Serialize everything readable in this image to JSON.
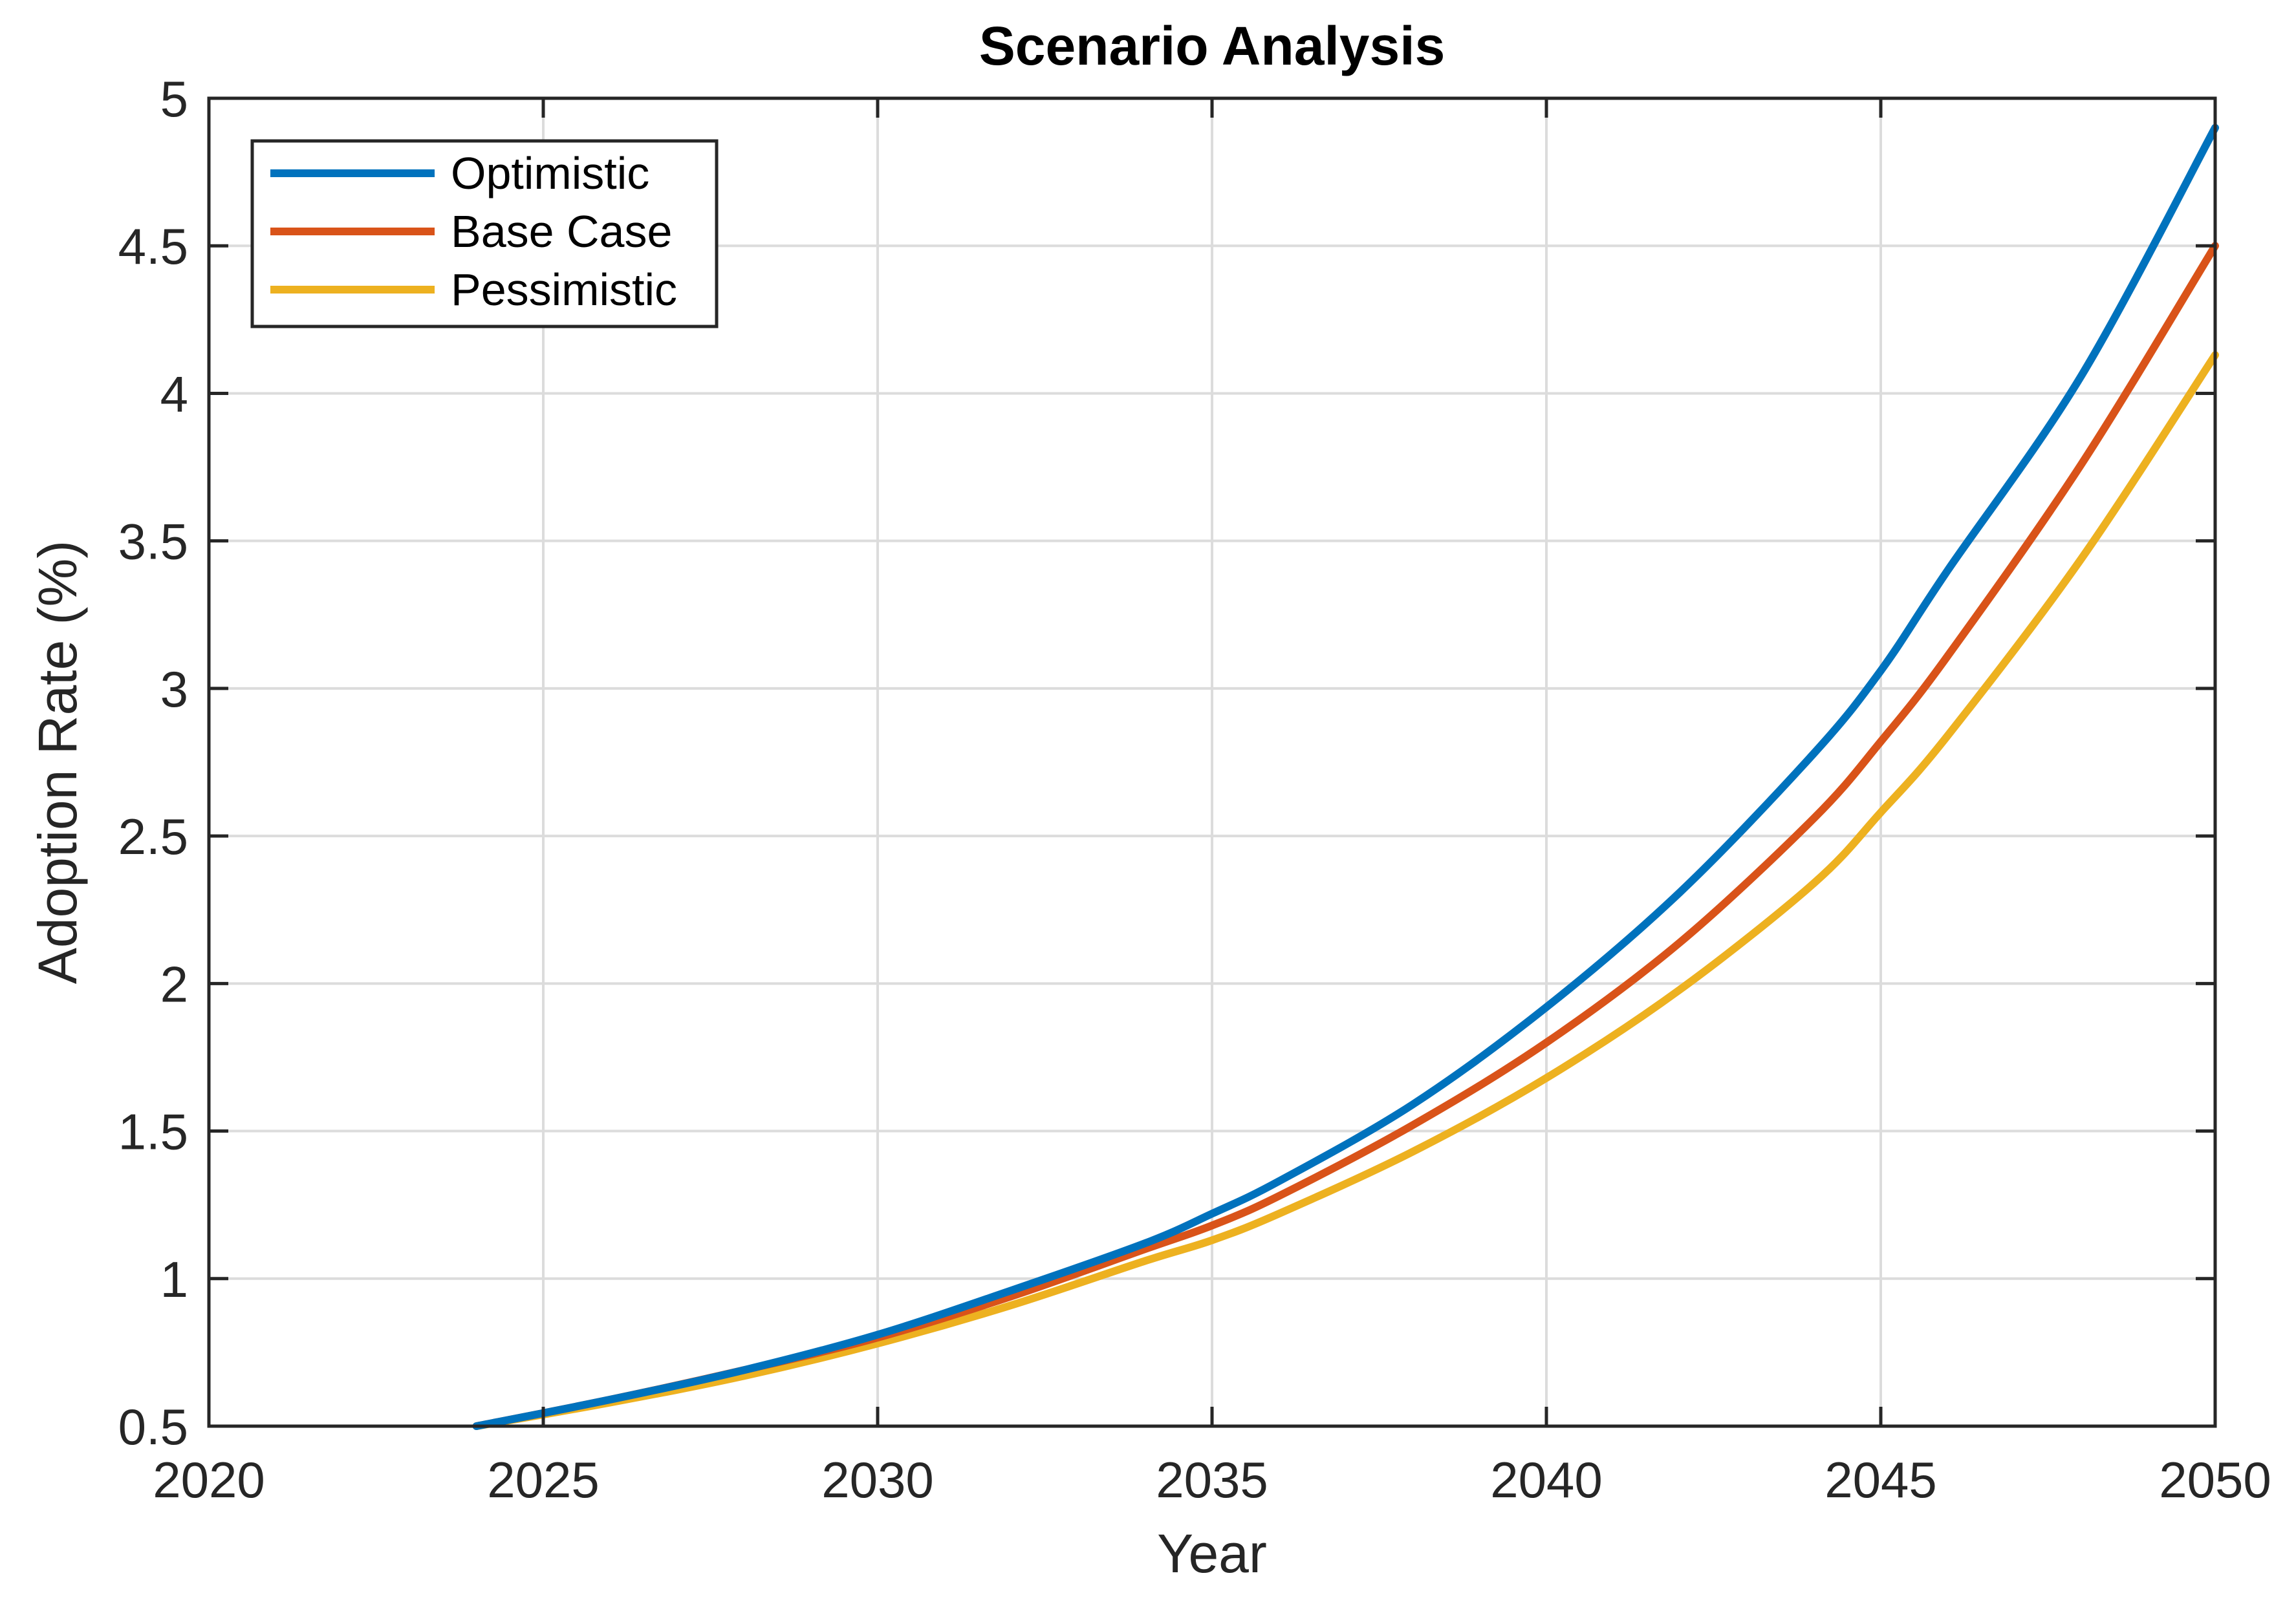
{
  "chart_data": {
    "type": "line",
    "title": "Scenario Analysis",
    "xlabel": "Year",
    "ylabel": "Adoption Rate (%)",
    "xlim": [
      2020,
      2050
    ],
    "ylim": [
      0.5,
      5
    ],
    "xticks": [
      "2020",
      "2025",
      "2030",
      "2035",
      "2040",
      "2045",
      "2050"
    ],
    "yticks": [
      "0.5",
      "1",
      "1.5",
      "2",
      "2.5",
      "3",
      "3.5",
      "4",
      "4.5",
      "5"
    ],
    "grid": true,
    "legend_position": "top-left",
    "x": [
      2024,
      2026,
      2028,
      2030,
      2032,
      2034,
      2035,
      2036,
      2038,
      2040,
      2042,
      2044,
      2045,
      2046,
      2048,
      2050
    ],
    "series": [
      {
        "name": "Optimistic",
        "color": "#0072BD",
        "values": [
          0.5,
          0.59,
          0.69,
          0.81,
          0.96,
          1.12,
          1.22,
          1.33,
          1.59,
          1.92,
          2.31,
          2.78,
          3.06,
          3.4,
          4.06,
          4.9
        ]
      },
      {
        "name": "Base Case",
        "color": "#D95319",
        "values": [
          0.5,
          0.59,
          0.69,
          0.8,
          0.94,
          1.1,
          1.18,
          1.28,
          1.52,
          1.8,
          2.14,
          2.56,
          2.82,
          3.11,
          3.76,
          4.5
        ]
      },
      {
        "name": "Pessimistic",
        "color": "#EDB120",
        "values": [
          0.5,
          0.58,
          0.67,
          0.78,
          0.91,
          1.06,
          1.13,
          1.22,
          1.43,
          1.68,
          1.98,
          2.34,
          2.58,
          2.84,
          3.44,
          4.13
        ]
      }
    ]
  }
}
